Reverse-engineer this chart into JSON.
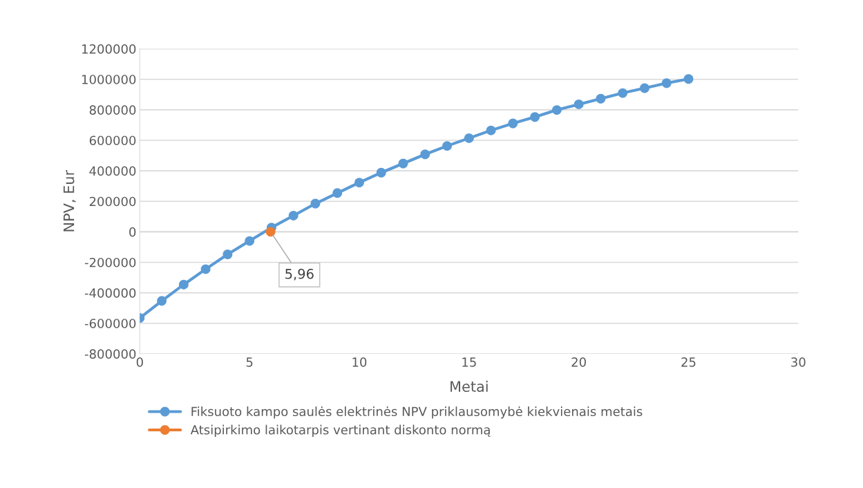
{
  "chart_data": {
    "type": "line",
    "xlabel": "Metai",
    "ylabel": "NPV, Eur",
    "xlim": [
      0,
      30
    ],
    "xticks": [
      0,
      5,
      10,
      15,
      20,
      25,
      30
    ],
    "ylim": [
      -800000,
      1200000
    ],
    "yticks": [
      -800000,
      -600000,
      -400000,
      -200000,
      0,
      200000,
      400000,
      600000,
      800000,
      1000000,
      1200000
    ],
    "grid": "y",
    "legend": "bottom",
    "marker": "circle",
    "line_style": "solid",
    "series": [
      {
        "name": "Fiksuoto kampo saulės elektrinės NPV priklausomybė kiekvienais metais",
        "color": "#5b9bd5",
        "x": [
          0,
          1,
          2,
          3,
          4,
          5,
          6,
          7,
          8,
          9,
          10,
          11,
          12,
          13,
          14,
          15,
          16,
          17,
          18,
          19,
          20,
          21,
          22,
          23,
          24,
          25
        ],
        "values": [
          -565000,
          -453000,
          -346000,
          -245000,
          -148000,
          -60000,
          28000,
          106000,
          185000,
          254000,
          323000,
          388000,
          448000,
          508000,
          563000,
          614000,
          665000,
          711000,
          753000,
          799000,
          836000,
          873000,
          910000,
          942000,
          975000,
          1002000
        ]
      },
      {
        "name": "Atsipirkimo laikotarpis vertinant diskonto normą",
        "color": "#ed7d31",
        "type": "scatter",
        "x": [
          5.96
        ],
        "values": [
          0
        ]
      }
    ],
    "annotations": [
      {
        "text": "5,96",
        "x": 5.96,
        "y": 0
      }
    ]
  }
}
